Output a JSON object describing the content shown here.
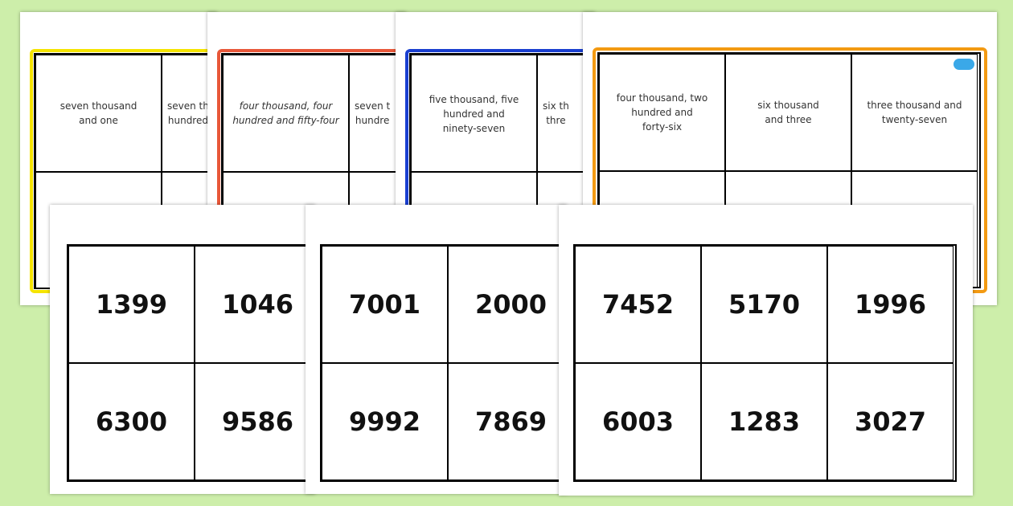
{
  "back_sheets": [
    {
      "frame_color": "#f5e400",
      "words": [
        "seven thousand\nand one",
        "seven th\nhundred"
      ]
    },
    {
      "frame_color": "#e8583a",
      "words": [
        "four thousand, four\nhundred and fifty-four",
        "seven t\nhundre"
      ]
    },
    {
      "frame_color": "#1a3fd0",
      "words": [
        "five thousand, five\nhundred and\nninety-seven",
        "six th\nthre"
      ]
    },
    {
      "frame_color": "#f39a12",
      "words": [
        "four thousand, two\nhundred and\nforty-six",
        "six thousand\nand three",
        "three thousand and\ntwenty-seven"
      ]
    }
  ],
  "front_sheets": [
    {
      "numbers": [
        "1399",
        "1046",
        "6300",
        "9586"
      ]
    },
    {
      "numbers": [
        "7001",
        "2000",
        "9992",
        "7869"
      ]
    },
    {
      "numbers": [
        "7452",
        "5170",
        "1996",
        "6003",
        "1283",
        "3027"
      ]
    }
  ]
}
